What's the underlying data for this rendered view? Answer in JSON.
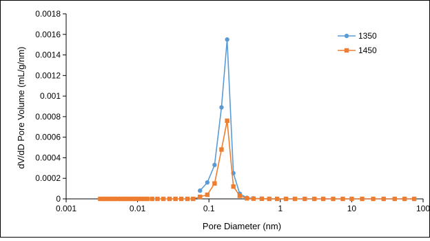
{
  "chart_data": {
    "type": "line",
    "xscale": "log",
    "xlabel": "Pore Diameter  (nm)",
    "ylabel": "dV/dD Pore Volume  (mL/g/nm)",
    "xlim": [
      0.001,
      100
    ],
    "ylim": [
      0,
      0.0018
    ],
    "xticks": [
      0.001,
      0.01,
      0.1,
      1,
      10,
      100
    ],
    "xtick_labels": [
      "0.001",
      "0.01",
      "0.1",
      "1",
      "10",
      "100"
    ],
    "yticks": [
      0,
      0.0002,
      0.0004,
      0.0006,
      0.0008,
      0.001,
      0.0012,
      0.0014,
      0.0016,
      0.0018
    ],
    "ytick_labels": [
      "0",
      "0.0002",
      "0.0004",
      "0.0006",
      "0.0008",
      "0.001",
      "0.0012",
      "0.0014",
      "0.0016",
      "0.0018"
    ],
    "grid": false,
    "legend_position": "top-right",
    "series": [
      {
        "name": "1350",
        "color": "#5B9BD5",
        "marker": "circle",
        "points": [
          [
            0.075,
            8e-05
          ],
          [
            0.095,
            0.00016
          ],
          [
            0.12,
            0.00033
          ],
          [
            0.15,
            0.00089
          ],
          [
            0.18,
            0.00155
          ],
          [
            0.22,
            0.00025
          ],
          [
            0.27,
            5e-05
          ],
          [
            0.34,
            1e-05
          ],
          [
            0.42,
            5e-06
          ],
          [
            0.55,
            2e-06
          ],
          [
            0.7,
            1e-06
          ],
          [
            0.9,
            1e-06
          ],
          [
            1.2,
            0
          ],
          [
            1.6,
            0
          ],
          [
            2.2,
            0
          ],
          [
            3,
            0
          ],
          [
            4,
            0
          ],
          [
            5.5,
            0
          ],
          [
            7.5,
            0
          ],
          [
            10,
            0
          ],
          [
            14,
            0
          ],
          [
            20,
            0
          ],
          [
            28,
            0
          ],
          [
            40,
            0
          ],
          [
            55,
            0
          ],
          [
            75,
            0
          ]
        ]
      },
      {
        "name": "1450",
        "color": "#ED7D31",
        "marker": "square",
        "points": [
          [
            0.003,
            0
          ],
          [
            0.0033,
            0
          ],
          [
            0.0036,
            0
          ],
          [
            0.004,
            0
          ],
          [
            0.0044,
            0
          ],
          [
            0.0048,
            0
          ],
          [
            0.0053,
            0
          ],
          [
            0.0058,
            0
          ],
          [
            0.0064,
            0
          ],
          [
            0.007,
            0
          ],
          [
            0.0077,
            0
          ],
          [
            0.0085,
            0
          ],
          [
            0.0093,
            0
          ],
          [
            0.0102,
            0
          ],
          [
            0.0113,
            0
          ],
          [
            0.0124,
            0
          ],
          [
            0.0137,
            0
          ],
          [
            0.016,
            0
          ],
          [
            0.019,
            0
          ],
          [
            0.023,
            0
          ],
          [
            0.028,
            0
          ],
          [
            0.034,
            0
          ],
          [
            0.041,
            0
          ],
          [
            0.05,
            0
          ],
          [
            0.06,
            0
          ],
          [
            0.075,
            2e-05
          ],
          [
            0.095,
            4e-05
          ],
          [
            0.12,
            0.00015
          ],
          [
            0.15,
            0.00048
          ],
          [
            0.18,
            0.00076
          ],
          [
            0.22,
            0.00012
          ],
          [
            0.27,
            3e-05
          ],
          [
            0.34,
            5e-06
          ],
          [
            0.42,
            2e-06
          ],
          [
            0.55,
            1e-06
          ],
          [
            0.7,
            0
          ],
          [
            0.9,
            0
          ],
          [
            1.2,
            0
          ],
          [
            1.6,
            0
          ],
          [
            2.2,
            0
          ],
          [
            3,
            0
          ],
          [
            4,
            0
          ],
          [
            5.5,
            0
          ],
          [
            7.5,
            0
          ],
          [
            10,
            0
          ],
          [
            14,
            0
          ],
          [
            20,
            0
          ],
          [
            28,
            0
          ],
          [
            40,
            0
          ],
          [
            55,
            0
          ],
          [
            75,
            0
          ]
        ]
      }
    ]
  }
}
